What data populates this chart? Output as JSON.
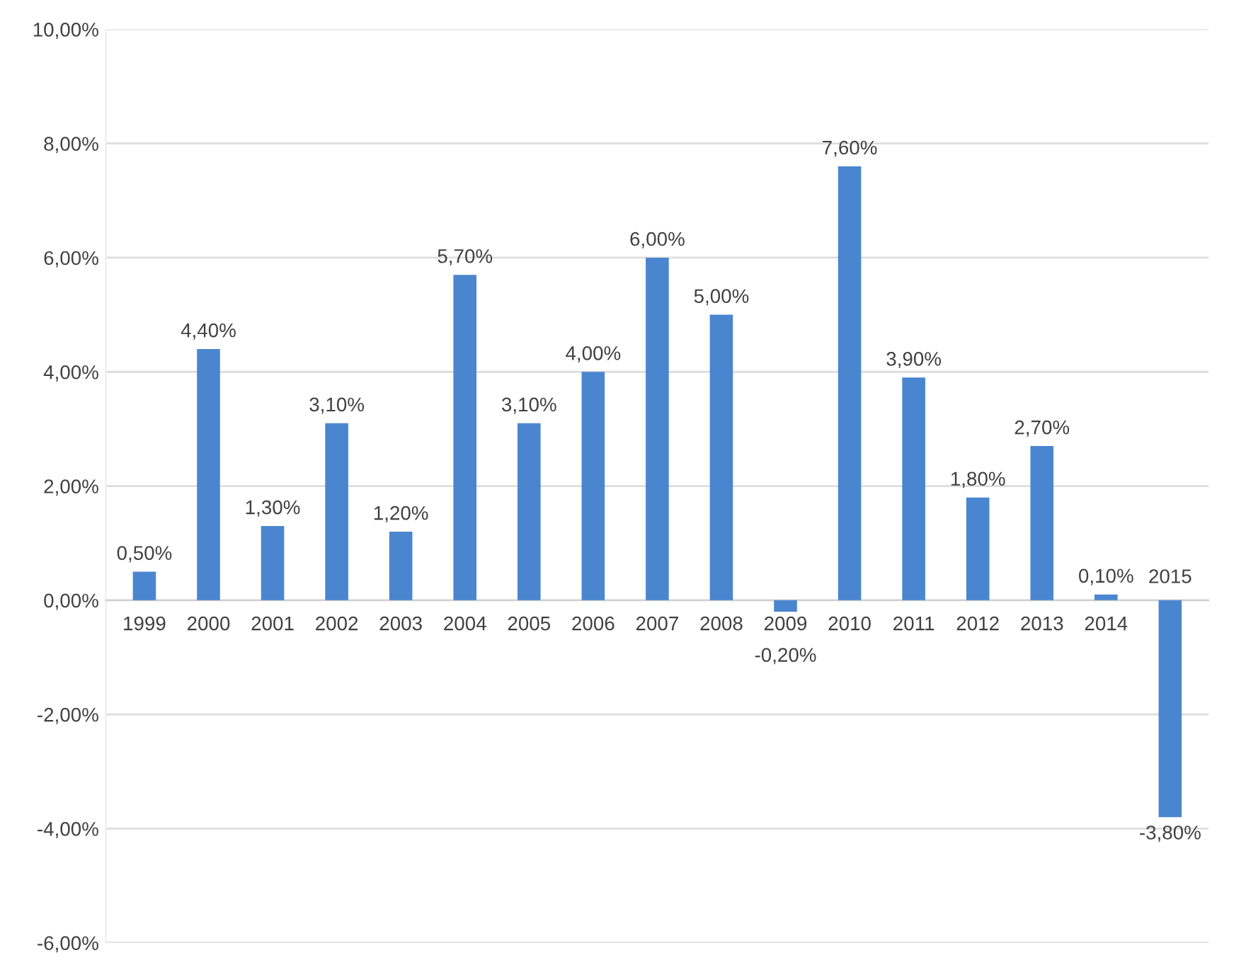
{
  "chart_data": {
    "type": "bar",
    "categories": [
      "1999",
      "2000",
      "2001",
      "2002",
      "2003",
      "2004",
      "2005",
      "2006",
      "2007",
      "2008",
      "2009",
      "2010",
      "2011",
      "2012",
      "2013",
      "2014",
      "2015"
    ],
    "values": [
      0.5,
      4.4,
      1.3,
      3.1,
      1.2,
      5.7,
      3.1,
      4.0,
      6.0,
      5.0,
      -0.2,
      7.6,
      3.9,
      1.8,
      2.7,
      0.1,
      -3.8
    ],
    "value_labels": [
      "0,50%",
      "4,40%",
      "1,30%",
      "3,10%",
      "1,20%",
      "5,70%",
      "3,10%",
      "4,00%",
      "6,00%",
      "5,00%",
      "-0,20%",
      "7,60%",
      "3,90%",
      "1,80%",
      "2,70%",
      "0,10%",
      "-3,80%"
    ],
    "color": "#4a86cf",
    "ylim": [
      -6,
      10
    ],
    "yticks": [
      {
        "value": -6,
        "label": "-6,00%"
      },
      {
        "value": -4,
        "label": "-4,00%"
      },
      {
        "value": -2,
        "label": "-2,00%"
      },
      {
        "value": 0,
        "label": "0,00%"
      },
      {
        "value": 2,
        "label": "2,00%"
      },
      {
        "value": 4,
        "label": "4,00%"
      },
      {
        "value": 6,
        "label": "6,00%"
      },
      {
        "value": 8,
        "label": "8,00%"
      },
      {
        "value": 10,
        "label": "10,00%"
      }
    ],
    "grid": "y"
  }
}
